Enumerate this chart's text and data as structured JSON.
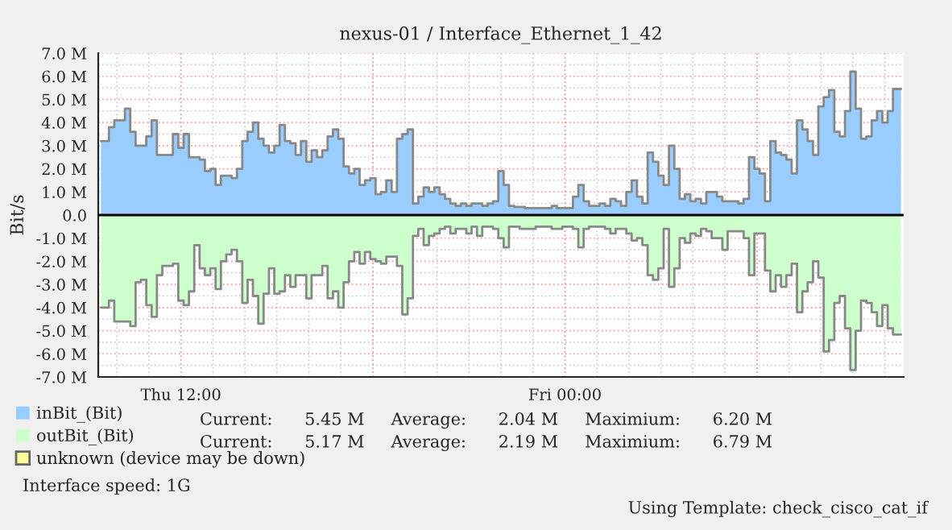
{
  "chart_data": {
    "type": "area",
    "title": "nexus-01 / Interface_Ethernet_1_42",
    "ylabel": "Bit/s",
    "categories": [
      null,
      null,
      null,
      null,
      null,
      null,
      null,
      null,
      null,
      null,
      null,
      null,
      null,
      null,
      null,
      "Thu 12:00",
      null,
      null,
      null,
      null,
      null,
      null,
      null,
      null,
      null,
      null,
      null,
      null,
      null,
      null,
      null,
      null,
      null,
      null,
      null,
      null,
      null,
      null,
      null,
      null,
      null,
      null,
      null,
      null,
      null,
      null,
      null,
      null,
      null,
      null,
      null,
      null,
      null,
      null,
      null,
      null,
      null,
      null,
      null,
      null,
      null,
      null,
      null,
      null,
      null,
      null,
      null,
      null,
      null,
      null,
      null,
      null,
      null,
      null,
      null,
      null,
      null,
      null,
      null,
      null,
      null,
      null,
      null,
      null,
      null,
      null,
      null,
      "Fri 00:00",
      null,
      null,
      null,
      null,
      null,
      null,
      null,
      null,
      null,
      null,
      null,
      null,
      null,
      null,
      null,
      null,
      null,
      null,
      null,
      null,
      null,
      null,
      null,
      null,
      null,
      null,
      null,
      null,
      null,
      null,
      null,
      null,
      null,
      null,
      null,
      null,
      null,
      null,
      null,
      null,
      null,
      null,
      null,
      null,
      null,
      null,
      null,
      null,
      null,
      null,
      null,
      null,
      null,
      null,
      null,
      null,
      null,
      null,
      null,
      null,
      null,
      null,
      null
    ],
    "ylim": [
      -7,
      7
    ],
    "yticks": [
      {
        "value": -7,
        "label": "-7.0 M"
      },
      {
        "value": -6,
        "label": "-6.0 M"
      },
      {
        "value": -5,
        "label": "-5.0 M"
      },
      {
        "value": -4,
        "label": "-4.0 M"
      },
      {
        "value": -3,
        "label": "-3.0 M"
      },
      {
        "value": -2,
        "label": "-2.0 M"
      },
      {
        "value": -1,
        "label": "-1.0 M"
      },
      {
        "value": 0,
        "label": "0.0"
      },
      {
        "value": 1,
        "label": "1.0 M"
      },
      {
        "value": 2,
        "label": "2.0 M"
      },
      {
        "value": 3,
        "label": "3.0 M"
      },
      {
        "value": 4,
        "label": "4.0 M"
      },
      {
        "value": 5,
        "label": "5.0 M"
      },
      {
        "value": 6,
        "label": "6.0 M"
      },
      {
        "value": 7,
        "label": "7.0 M"
      }
    ],
    "grid": true,
    "legend": "bottom",
    "ref_lines": [
      {
        "axis": "y",
        "value": 0,
        "color": "#000000"
      }
    ],
    "series": [
      {
        "name": "inBit_(Bit)",
        "color": "#99ccff",
        "values": [
          3.2,
          3.2,
          3.8,
          4.1,
          4.1,
          4.6,
          3.6,
          3.0,
          3.0,
          3.4,
          4.1,
          2.6,
          2.6,
          2.6,
          3.5,
          2.9,
          3.5,
          2.5,
          2.5,
          2.4,
          1.9,
          2.0,
          1.3,
          1.7,
          1.7,
          1.6,
          2.0,
          3.2,
          3.6,
          4.0,
          3.3,
          3.0,
          2.7,
          3.0,
          3.9,
          3.2,
          3.1,
          2.6,
          3.2,
          2.3,
          2.8,
          2.5,
          2.8,
          3.4,
          3.7,
          3.3,
          2.1,
          1.8,
          2.0,
          1.3,
          1.5,
          1.6,
          0.9,
          1.0,
          1.5,
          1.0,
          3.3,
          3.5,
          3.7,
          0.5,
          0.8,
          1.2,
          1.0,
          1.2,
          0.9,
          0.7,
          0.5,
          0.4,
          0.5,
          0.4,
          0.5,
          0.5,
          0.4,
          0.5,
          0.6,
          1.9,
          1.3,
          0.4,
          0.35,
          0.35,
          0.3,
          0.3,
          0.3,
          0.3,
          0.3,
          0.4,
          0.3,
          0.3,
          0.3,
          0.8,
          1.3,
          0.6,
          0.4,
          0.4,
          0.5,
          0.4,
          0.7,
          0.6,
          0.4,
          1.0,
          1.5,
          0.8,
          0.5,
          2.7,
          2.3,
          1.7,
          1.3,
          3.0,
          2.0,
          0.7,
          0.9,
          0.6,
          0.7,
          0.5,
          1.0,
          1.0,
          0.8,
          0.6,
          0.6,
          0.6,
          0.5,
          0.7,
          2.5,
          2.0,
          1.8,
          0.6,
          3.2,
          2.7,
          2.6,
          2.4,
          1.8,
          4.1,
          3.7,
          3.2,
          2.6,
          4.7,
          5.1,
          5.4,
          3.6,
          3.4,
          4.5,
          6.2,
          4.6,
          3.3,
          3.4,
          4.1,
          4.5,
          4.0,
          4.5,
          5.45,
          5.45
        ]
      },
      {
        "name": "outBit_(Bit)",
        "color": "#ccffcc",
        "values": [
          -4.0,
          -4.0,
          -3.7,
          -4.6,
          -4.6,
          -4.6,
          -4.8,
          -2.9,
          -2.8,
          -3.9,
          -4.4,
          -2.6,
          -2.2,
          -2.2,
          -2.1,
          -3.7,
          -3.9,
          -3.3,
          -1.3,
          -2.3,
          -2.6,
          -2.3,
          -3.2,
          -2.0,
          -1.7,
          -1.5,
          -2.0,
          -3.8,
          -2.8,
          -3.5,
          -4.7,
          -3.4,
          -2.3,
          -3.4,
          -3.3,
          -2.6,
          -3.1,
          -2.6,
          -2.6,
          -3.6,
          -2.6,
          -2.6,
          -2.2,
          -3.6,
          -3.3,
          -4.0,
          -2.9,
          -2.0,
          -1.6,
          -2.1,
          -1.6,
          -1.9,
          -2.0,
          -2.1,
          -1.8,
          -1.8,
          -2.2,
          -4.3,
          -3.6,
          -0.9,
          -0.6,
          -1.3,
          -0.9,
          -0.8,
          -0.6,
          -0.5,
          -0.8,
          -0.6,
          -0.6,
          -0.8,
          -0.5,
          -0.9,
          -0.5,
          -0.5,
          -0.6,
          -1.0,
          -1.4,
          -0.5,
          -0.5,
          -0.6,
          -0.6,
          -0.6,
          -0.5,
          -0.5,
          -0.5,
          -0.6,
          -0.6,
          -0.5,
          -0.5,
          -0.6,
          -1.4,
          -0.6,
          -0.5,
          -0.5,
          -0.5,
          -0.6,
          -0.8,
          -0.6,
          -0.6,
          -0.8,
          -1.1,
          -1.0,
          -1.3,
          -2.6,
          -2.8,
          -2.3,
          -0.6,
          -3.1,
          -2.3,
          -1.0,
          -1.2,
          -0.8,
          -0.9,
          -0.6,
          -0.7,
          -1.0,
          -1.0,
          -1.5,
          -0.7,
          -0.7,
          -0.7,
          -1.0,
          -2.6,
          -0.8,
          -0.8,
          -2.4,
          -3.3,
          -2.6,
          -3.1,
          -2.6,
          -2.1,
          -4.2,
          -3.3,
          -2.9,
          -2.0,
          -2.7,
          -5.9,
          -5.4,
          -3.8,
          -3.5,
          -4.9,
          -6.7,
          -5.0,
          -3.7,
          -3.8,
          -4.2,
          -4.8,
          -3.9,
          -4.9,
          -5.17,
          -5.17
        ]
      },
      {
        "name": "unknown (device may be down)",
        "color": "#ffff99",
        "values": [
          null,
          null,
          null,
          null,
          null,
          null,
          null,
          null,
          null,
          null,
          null,
          null,
          null,
          null,
          null,
          null,
          null,
          null,
          null,
          null,
          null,
          null,
          null,
          null,
          null,
          null,
          null,
          null,
          null,
          null,
          null,
          null,
          null,
          null,
          null,
          null,
          null,
          null,
          null,
          null,
          null,
          null,
          null,
          null,
          null,
          null,
          null,
          null,
          null,
          null,
          null,
          null,
          null,
          null,
          null,
          null,
          null,
          null,
          null,
          null,
          null,
          null,
          null,
          null,
          null,
          null,
          null,
          null,
          null,
          null,
          null,
          null,
          null,
          null,
          null,
          null,
          null,
          null,
          null,
          null,
          null,
          null,
          null,
          null,
          null,
          null,
          null,
          null,
          null,
          null,
          null,
          null,
          null,
          null,
          null,
          null,
          null,
          null,
          null,
          null,
          null,
          null,
          null,
          null,
          null,
          null,
          null,
          null,
          null,
          null,
          null,
          null,
          null,
          null,
          null,
          null,
          null,
          null,
          null,
          null,
          null,
          null,
          null,
          null,
          null,
          null,
          null,
          null,
          null,
          null,
          null,
          null,
          null,
          null,
          null,
          null,
          null,
          null,
          null,
          null,
          null,
          null,
          null,
          null,
          null,
          null,
          null,
          null,
          null,
          null,
          null
        ]
      }
    ],
    "annotations": [
      "Current:      5.45 M     Average:      2.04 M     Maximium:      6.20 M",
      "Current:      5.17 M     Average:      2.19 M     Maximium:      6.79 M",
      "Interface speed: 1G",
      "Using Template: check_cisco_cat_if"
    ]
  }
}
